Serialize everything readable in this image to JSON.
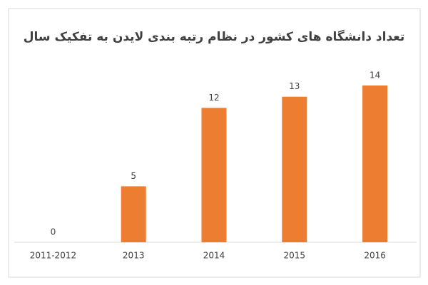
{
  "chart_data": {
    "type": "bar",
    "title": "تعداد دانشگاه های کشور در نظام رتبه بندی لایدن به تفکیک سال",
    "categories": [
      "2011-2012",
      "2013",
      "2014",
      "2015",
      "2016"
    ],
    "values": [
      0,
      5,
      12,
      13,
      14
    ],
    "color": "#ed7d31"
  }
}
